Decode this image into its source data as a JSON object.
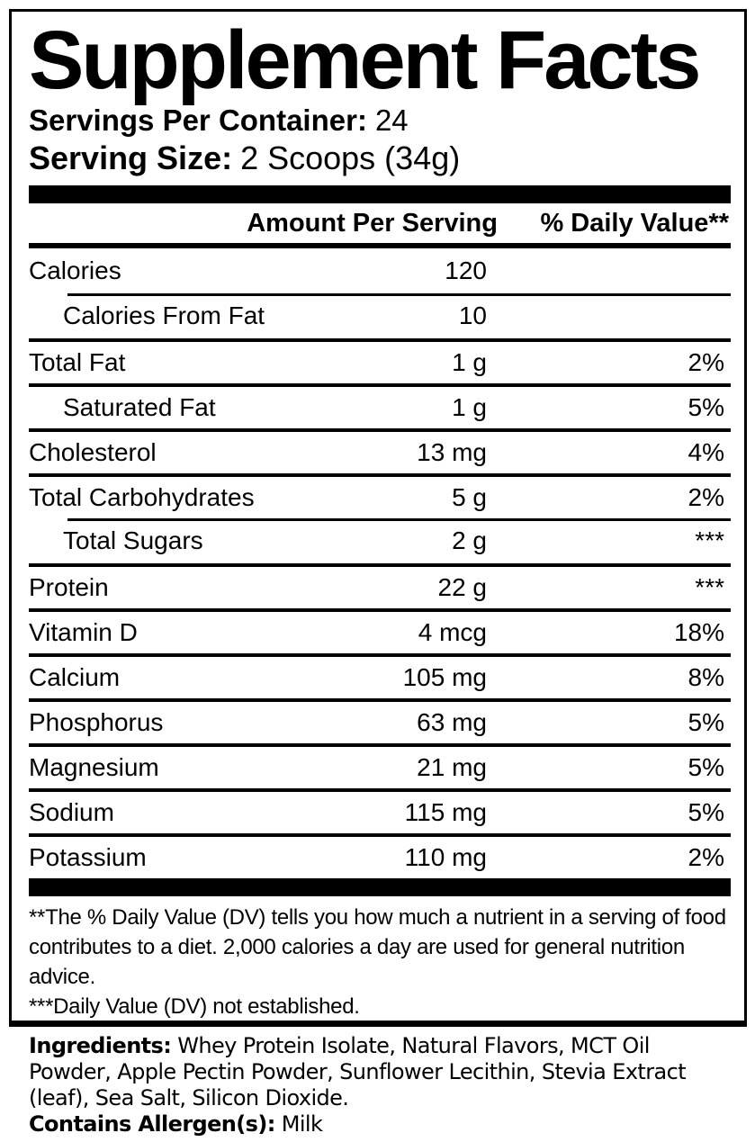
{
  "colors": {
    "text": "#000000",
    "background": "#ffffff"
  },
  "panel": {
    "title": "Supplement Facts",
    "servings_per_container": {
      "label": "Servings Per Container:",
      "value": "24"
    },
    "serving_size": {
      "label": "Serving Size:",
      "value": "2 Scoops (34g)"
    },
    "columns": {
      "amount": "Amount Per Serving",
      "daily_value": "% Daily Value**"
    },
    "rows": [
      {
        "name": "Calories",
        "amount": "120",
        "dv": "",
        "indent": false,
        "sep": "none"
      },
      {
        "name": "Calories From Fat",
        "amount": "10",
        "dv": "",
        "indent": true,
        "sep": "indent"
      },
      {
        "name": "Total Fat",
        "amount": "1 g",
        "dv": "2%",
        "indent": false,
        "sep": "full"
      },
      {
        "name": "Saturated Fat",
        "amount": "1 g",
        "dv": "5%",
        "indent": true,
        "sep": "full"
      },
      {
        "name": "Cholesterol",
        "amount": "13 mg",
        "dv": "4%",
        "indent": false,
        "sep": "full"
      },
      {
        "name": "Total Carbohydrates",
        "amount": "5 g",
        "dv": "2%",
        "indent": false,
        "sep": "full"
      },
      {
        "name": "Total Sugars",
        "amount": "2 g",
        "dv": "***",
        "indent": true,
        "sep": "indent"
      },
      {
        "name": "Protein",
        "amount": "22 g",
        "dv": "***",
        "indent": false,
        "sep": "full"
      },
      {
        "name": "Vitamin D",
        "amount": "4 mcg",
        "dv": "18%",
        "indent": false,
        "sep": "full"
      },
      {
        "name": "Calcium",
        "amount": "105 mg",
        "dv": "8%",
        "indent": false,
        "sep": "full"
      },
      {
        "name": "Phosphorus",
        "amount": "63 mg",
        "dv": "5%",
        "indent": false,
        "sep": "full"
      },
      {
        "name": "Magnesium",
        "amount": "21 mg",
        "dv": "5%",
        "indent": false,
        "sep": "full"
      },
      {
        "name": "Sodium",
        "amount": "115 mg",
        "dv": "5%",
        "indent": false,
        "sep": "full"
      },
      {
        "name": "Potassium",
        "amount": "110 mg",
        "dv": "2%",
        "indent": false,
        "sep": "full"
      }
    ],
    "footnotes": [
      "**The % Daily Value (DV) tells you how much a nutrient in a serving of food contributes to a diet. 2,000 calories a day are used for general nutrition advice.",
      "***Daily Value (DV) not established."
    ]
  },
  "ingredients": {
    "label": "Ingredients:",
    "text": "Whey Protein Isolate, Natural Flavors, MCT Oil Powder, Apple Pectin Powder, Sunflower Lecithin, Stevia Extract (leaf), Sea Salt, Silicon Dioxide.",
    "allergen_label": "Contains Allergen(s):",
    "allergen_value": "Milk"
  }
}
